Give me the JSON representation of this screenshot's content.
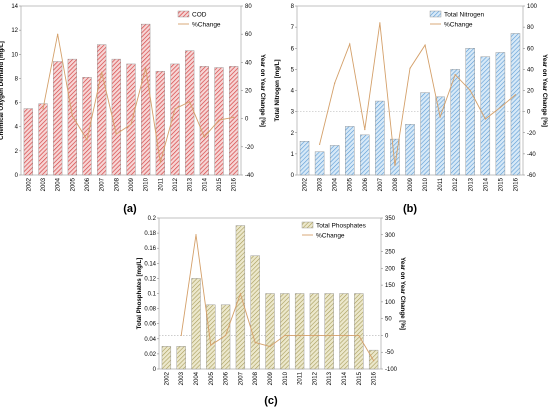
{
  "chart_data": [
    {
      "panel_label": "(a)",
      "type": "bar",
      "categories": [
        "2002",
        "2003",
        "2004",
        "2005",
        "2006",
        "2007",
        "2008",
        "2009",
        "2010",
        "2011",
        "2012",
        "2013",
        "2014",
        "2015",
        "2016"
      ],
      "series": [
        {
          "name": "COD",
          "type": "bar",
          "axis": "left",
          "color": "#e05c5c",
          "values": [
            5.5,
            5.9,
            9.4,
            9.6,
            8.1,
            10.8,
            9.6,
            9.2,
            12.5,
            8.6,
            9.2,
            10.3,
            9.0,
            8.9,
            9.0
          ]
        },
        {
          "name": "%Change",
          "type": "line",
          "axis": "right",
          "color": "#d4a06a",
          "values": [
            null,
            7,
            60,
            2,
            -15,
            33,
            -11,
            -4,
            36,
            -31,
            7,
            12,
            -13,
            -1,
            1
          ]
        }
      ],
      "ylabel": "Chemical Oxygen Demand [mg/L]",
      "y2label": "Year on Year Change [%]",
      "ylim": [
        0,
        14
      ],
      "yticks": [
        0,
        2,
        4,
        6,
        8,
        10,
        12,
        14
      ],
      "y2lim": [
        -40,
        80
      ],
      "y2ticks": [
        -40,
        -20,
        0,
        20,
        40,
        60,
        80
      ],
      "zero_line": false,
      "legend_position": "top-right"
    },
    {
      "panel_label": "(b)",
      "type": "bar",
      "categories": [
        "2002",
        "2003",
        "2004",
        "2005",
        "2006",
        "2007",
        "2008",
        "2009",
        "2010",
        "2011",
        "2012",
        "2013",
        "2014",
        "2015",
        "2016"
      ],
      "series": [
        {
          "name": "Total Nitrogen",
          "type": "bar",
          "axis": "left",
          "color": "#9dc3e6",
          "values": [
            1.6,
            1.1,
            1.4,
            2.3,
            1.9,
            3.5,
            1.7,
            2.4,
            3.9,
            3.7,
            5.0,
            6.0,
            5.6,
            5.8,
            6.7
          ]
        },
        {
          "name": "%Change",
          "type": "line",
          "axis": "right",
          "color": "#d4a06a",
          "values": [
            null,
            -31,
            27,
            64,
            -17,
            84,
            -51,
            41,
            63,
            -5,
            35,
            20,
            -7,
            4,
            16
          ]
        }
      ],
      "ylabel": "Total Nitrogen [mg/L]",
      "y2label": "Year on Year Change [%]",
      "ylim": [
        0,
        8
      ],
      "yticks": [
        0,
        1,
        2,
        3,
        4,
        5,
        6,
        7,
        8
      ],
      "y2lim": [
        -60,
        100
      ],
      "y2ticks": [
        -60,
        -40,
        -20,
        0,
        20,
        40,
        60,
        80,
        100
      ],
      "zero_line": true,
      "legend_position": "top-right"
    },
    {
      "panel_label": "(c)",
      "type": "bar",
      "categories": [
        "2002",
        "2003",
        "2004",
        "2005",
        "2006",
        "2007",
        "2008",
        "2009",
        "2010",
        "2011",
        "2012",
        "2013",
        "2014",
        "2015",
        "2016"
      ],
      "series": [
        {
          "name": "Total Phosphates",
          "type": "bar",
          "axis": "left",
          "color": "#c9c08a",
          "values": [
            0.03,
            0.03,
            0.12,
            0.085,
            0.085,
            0.19,
            0.15,
            0.1,
            0.1,
            0.1,
            0.1,
            0.1,
            0.1,
            0.1,
            0.025
          ]
        },
        {
          "name": "%Change",
          "type": "line",
          "axis": "right",
          "color": "#d4a06a",
          "values": [
            null,
            0,
            300,
            -29,
            0,
            124,
            -21,
            -33,
            0,
            0,
            0,
            0,
            0,
            0,
            -75
          ]
        }
      ],
      "ylabel": "Total Phosphates [mg/L]",
      "y2label": "Year on Year Change [%]",
      "ylim": [
        0,
        0.2
      ],
      "yticks": [
        0,
        0.02,
        0.04,
        0.06,
        0.08,
        0.1,
        0.12,
        0.14,
        0.16,
        0.18,
        0.2
      ],
      "y2lim": [
        -100,
        350
      ],
      "y2ticks": [
        -100,
        -50,
        0,
        50,
        100,
        150,
        200,
        250,
        300,
        350
      ],
      "zero_line": true,
      "legend_position": "top-right"
    }
  ]
}
